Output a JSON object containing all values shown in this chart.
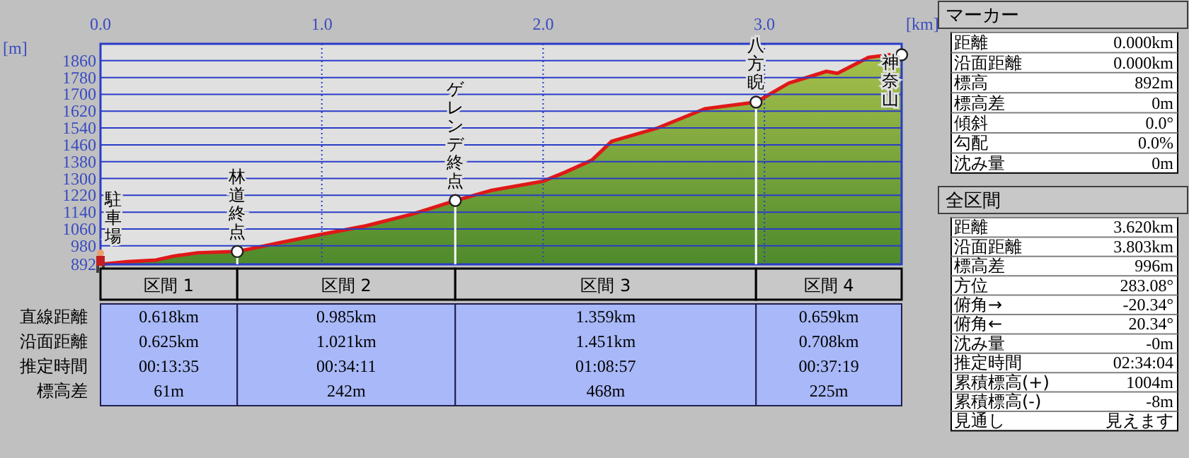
{
  "chart_data": {
    "type": "area",
    "xlabel": "[km]",
    "ylabel": "[m]",
    "x": [
      0,
      0.12,
      0.25,
      0.33,
      0.44,
      0.618,
      0.82,
      1.0,
      1.2,
      1.41,
      1.603,
      1.76,
      2.0,
      2.1,
      2.22,
      2.31,
      2.52,
      2.73,
      2.962,
      3.11,
      3.28,
      3.33,
      3.47,
      3.58,
      3.62
    ],
    "series": [
      {
        "color": "#e01818",
        "values": [
          892,
          905,
          912,
          931,
          947,
          953,
          997,
          1035,
          1075,
          1131,
          1195,
          1242,
          1287,
          1330,
          1387,
          1477,
          1541,
          1631,
          1663,
          1753,
          1809,
          1800,
          1875,
          1890,
          1888
        ]
      }
    ],
    "xlim": [
      0,
      3.62
    ],
    "ylim": [
      892,
      1940
    ],
    "xticks": [
      {
        "value": 0,
        "label": "0.0"
      },
      {
        "value": 1,
        "label": "1.0"
      },
      {
        "value": 2,
        "label": "2.0"
      },
      {
        "value": 3,
        "label": "3.0"
      }
    ],
    "yticks": [
      892,
      980,
      1060,
      1140,
      1220,
      1300,
      1380,
      1460,
      1540,
      1620,
      1700,
      1780,
      1860
    ],
    "grid": true,
    "annotations": [
      {
        "text": "駐車場",
        "x": 0,
        "y": 892
      },
      {
        "text": "林道終点",
        "x": 0.618,
        "y": 953
      },
      {
        "text": "ゲレンデ終点",
        "x": 1.603,
        "y": 1195
      },
      {
        "text": "八方睨",
        "x": 2.962,
        "y": 1663
      },
      {
        "text": "神奈山",
        "x": 3.62,
        "y": 1888
      },
      "区間 1",
      "区間 2",
      "区間 3",
      "区間 4",
      "直線距離",
      "沿面距離",
      "推定時間",
      "標高差",
      "0.618km",
      "0.625km",
      "00:13:35",
      "61m",
      "0.985km",
      "1.021km",
      "00:34:11",
      "242m",
      "1.359km",
      "1.451km",
      "01:08:57",
      "468m",
      "0.659km",
      "0.708km",
      "00:37:19",
      "225m",
      "マーカー",
      "距離",
      "0.000km",
      "沿面距離",
      "0.000km",
      "標高",
      "892m",
      "標高差",
      "0m",
      "傾斜",
      "0.0°",
      "勾配",
      "0.0%",
      "沈み量",
      "0m",
      "全区間",
      "距離",
      "3.620km",
      "沿面距離",
      "3.803km",
      "標高差",
      "996m",
      "方位",
      "283.08°",
      "俯角→",
      "-20.34°",
      "俯角←",
      "20.34°",
      "沈み量",
      "-0m",
      "推定時間",
      "02:34:04",
      "累積標高(+)",
      "1004m",
      "累積標高(-)",
      "-8m",
      "見通し",
      "見えます"
    ]
  }
}
